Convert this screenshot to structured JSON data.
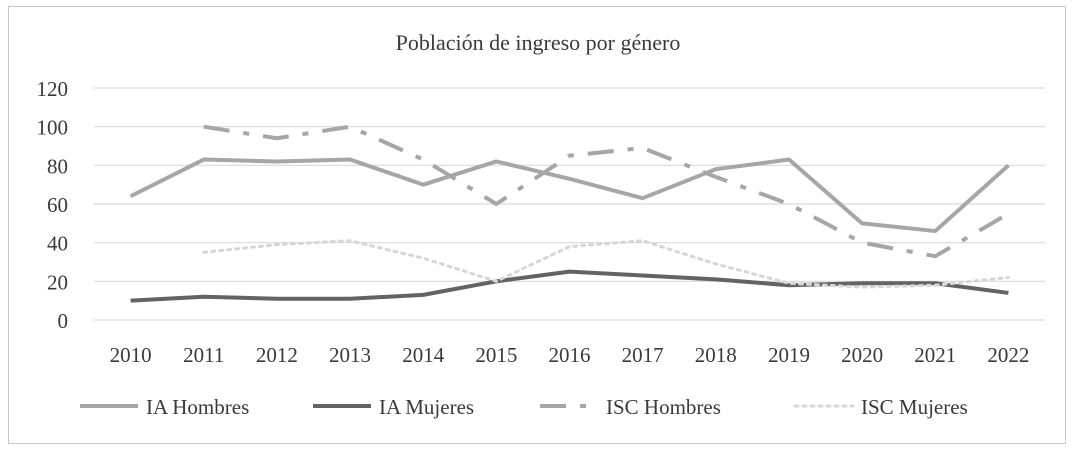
{
  "chart_data": {
    "type": "line",
    "title": "Población  de ingreso  por género",
    "xlabel": "",
    "ylabel": "",
    "ylim": [
      0,
      120
    ],
    "yticks": [
      0,
      20,
      40,
      60,
      80,
      100,
      120
    ],
    "grid": true,
    "legend_position": "bottom",
    "x": [
      "2010",
      "2011",
      "2012",
      "2013",
      "2014",
      "2015",
      "2016",
      "2017",
      "2018",
      "2019",
      "2020",
      "2021",
      "2022"
    ],
    "series": [
      {
        "name": "IA Hombres",
        "style": "solid",
        "color": "#a6a6a6",
        "values": [
          64,
          83,
          82,
          83,
          70,
          82,
          73,
          63,
          78,
          83,
          50,
          46,
          80
        ]
      },
      {
        "name": "IA Mujeres",
        "style": "solid",
        "color": "#636363",
        "values": [
          10,
          12,
          11,
          11,
          13,
          20,
          25,
          23,
          21,
          18,
          19,
          19,
          14
        ]
      },
      {
        "name": "ISC Hombres",
        "style": "dashdot",
        "color": "#a6a6a6",
        "values": [
          null,
          100,
          94,
          100,
          83,
          60,
          85,
          89,
          74,
          60,
          40,
          33,
          55
        ]
      },
      {
        "name": "ISC Mujeres",
        "style": "dotted",
        "color": "#d6d6d6",
        "values": [
          null,
          35,
          39,
          41,
          32,
          20,
          38,
          41,
          29,
          19,
          17,
          18,
          22
        ]
      }
    ]
  }
}
